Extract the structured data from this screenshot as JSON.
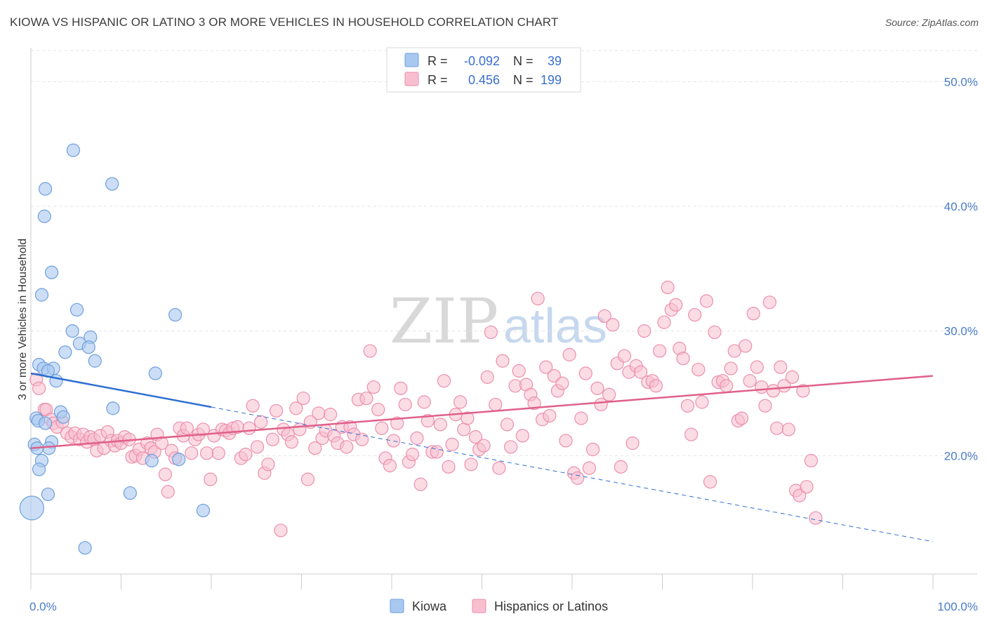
{
  "title": "KIOWA VS HISPANIC OR LATINO 3 OR MORE VEHICLES IN HOUSEHOLD CORRELATION CHART",
  "source": "Source: ZipAtlas.com",
  "watermark": {
    "zip": "ZIP",
    "atlas": "atlas"
  },
  "chart_data": {
    "type": "scatter",
    "xlabel": "",
    "ylabel": "3 or more Vehicles in Household",
    "xlim": [
      0,
      100
    ],
    "ylim": [
      10.5,
      52.5
    ],
    "x_tick_labels": [
      {
        "value": 0,
        "label": "0.0%"
      },
      {
        "value": 100,
        "label": "100.0%"
      }
    ],
    "y_ticks": [
      {
        "value": 20,
        "label": "20.0%"
      },
      {
        "value": 30,
        "label": "30.0%"
      },
      {
        "value": 40,
        "label": "40.0%"
      },
      {
        "value": 50,
        "label": "50.0%"
      }
    ],
    "grid": true,
    "legend_position": "top-center",
    "colors": {
      "kiowa_fill": "#a9c8f0",
      "kiowa_stroke": "#6f9fdc",
      "kiowa_line": "#2e6fd1",
      "hisp_fill": "#f7bfd0",
      "hisp_stroke": "#ec8fac",
      "hisp_line": "#e0608a",
      "axis_tick": "#4a7cc9"
    },
    "stats": [
      {
        "r_label": "R =",
        "r": "-0.092",
        "n_label": "N =",
        "n": "39"
      },
      {
        "r_label": "R =",
        "r": "0.456",
        "n_label": "N =",
        "n": "199"
      }
    ],
    "series": [
      {
        "name": "Kiowa",
        "trend": {
          "x0": 0,
          "y0": 26.6,
          "x1": 20,
          "y1": 23.9,
          "dash_x1": 100,
          "dash_y1": 13.1
        },
        "points": [
          [
            4.7,
            44.5
          ],
          [
            1.6,
            41.4
          ],
          [
            9.0,
            41.8
          ],
          [
            1.5,
            39.2
          ],
          [
            2.3,
            34.7
          ],
          [
            1.2,
            32.9
          ],
          [
            5.1,
            31.7
          ],
          [
            16.0,
            31.3
          ],
          [
            4.6,
            30.0
          ],
          [
            6.6,
            29.5
          ],
          [
            5.4,
            29.0
          ],
          [
            6.4,
            28.7
          ],
          [
            3.8,
            28.3
          ],
          [
            7.1,
            27.6
          ],
          [
            0.9,
            27.3
          ],
          [
            1.4,
            27.0
          ],
          [
            2.5,
            27.0
          ],
          [
            1.9,
            26.8
          ],
          [
            13.8,
            26.6
          ],
          [
            2.8,
            26.0
          ],
          [
            9.1,
            23.8
          ],
          [
            3.3,
            23.5
          ],
          [
            3.6,
            23.1
          ],
          [
            0.6,
            23.0
          ],
          [
            0.8,
            22.8
          ],
          [
            1.6,
            22.6
          ],
          [
            2.3,
            21.1
          ],
          [
            0.4,
            20.9
          ],
          [
            2.0,
            20.6
          ],
          [
            0.7,
            20.6
          ],
          [
            1.2,
            19.6
          ],
          [
            13.4,
            19.6
          ],
          [
            16.4,
            19.7
          ],
          [
            0.9,
            18.9
          ],
          [
            1.9,
            16.9
          ],
          [
            11.0,
            17.0
          ],
          [
            19.1,
            15.6
          ],
          [
            0.1,
            15.8
          ],
          [
            6.0,
            12.6
          ]
        ]
      },
      {
        "name": "Hispanics or Latinos",
        "trend": {
          "x0": 0,
          "y0": 20.6,
          "x1": 100,
          "y1": 26.4
        },
        "points": [
          [
            0.6,
            26.1
          ],
          [
            0.9,
            25.4
          ],
          [
            1.5,
            23.7
          ],
          [
            1.7,
            23.7
          ],
          [
            2.2,
            22.9
          ],
          [
            2.5,
            22.6
          ],
          [
            2.9,
            22.3
          ],
          [
            3.5,
            22.7
          ],
          [
            4.0,
            21.8
          ],
          [
            4.5,
            21.5
          ],
          [
            4.9,
            21.8
          ],
          [
            5.4,
            21.3
          ],
          [
            5.8,
            21.7
          ],
          [
            6.2,
            21.1
          ],
          [
            6.6,
            21.5
          ],
          [
            7.0,
            21.3
          ],
          [
            7.3,
            20.4
          ],
          [
            7.7,
            21.6
          ],
          [
            8.1,
            20.6
          ],
          [
            8.5,
            21.9
          ],
          [
            8.9,
            21.2
          ],
          [
            9.3,
            20.8
          ],
          [
            9.6,
            21.2
          ],
          [
            10.0,
            21.0
          ],
          [
            10.4,
            21.5
          ],
          [
            10.9,
            21.3
          ],
          [
            11.2,
            19.9
          ],
          [
            11.6,
            20.0
          ],
          [
            12.0,
            20.5
          ],
          [
            12.4,
            19.8
          ],
          [
            12.9,
            21.0
          ],
          [
            13.3,
            20.6
          ],
          [
            13.7,
            20.3
          ],
          [
            14.0,
            21.7
          ],
          [
            14.5,
            21.0
          ],
          [
            14.9,
            18.5
          ],
          [
            15.2,
            17.1
          ],
          [
            15.6,
            20.4
          ],
          [
            16.0,
            19.8
          ],
          [
            16.5,
            22.2
          ],
          [
            16.9,
            21.6
          ],
          [
            17.3,
            22.2
          ],
          [
            17.8,
            20.2
          ],
          [
            18.2,
            21.3
          ],
          [
            18.6,
            21.7
          ],
          [
            19.1,
            22.1
          ],
          [
            19.5,
            20.2
          ],
          [
            19.9,
            18.1
          ],
          [
            20.3,
            21.6
          ],
          [
            20.8,
            20.2
          ],
          [
            21.2,
            22.1
          ],
          [
            21.6,
            22.0
          ],
          [
            22.0,
            21.8
          ],
          [
            22.4,
            22.2
          ],
          [
            22.9,
            22.3
          ],
          [
            23.3,
            19.8
          ],
          [
            23.8,
            20.1
          ],
          [
            24.2,
            22.2
          ],
          [
            24.6,
            24.0
          ],
          [
            25.1,
            20.7
          ],
          [
            25.5,
            22.7
          ],
          [
            25.9,
            18.6
          ],
          [
            26.3,
            19.3
          ],
          [
            26.8,
            21.3
          ],
          [
            27.2,
            23.6
          ],
          [
            27.7,
            14.0
          ],
          [
            28.0,
            22.1
          ],
          [
            28.5,
            21.7
          ],
          [
            28.9,
            21.1
          ],
          [
            29.4,
            23.8
          ],
          [
            29.8,
            22.1
          ],
          [
            30.2,
            24.6
          ],
          [
            30.7,
            18.1
          ],
          [
            31.0,
            22.7
          ],
          [
            31.5,
            20.6
          ],
          [
            31.9,
            23.4
          ],
          [
            32.3,
            21.4
          ],
          [
            32.7,
            22.0
          ],
          [
            33.2,
            23.3
          ],
          [
            33.6,
            21.6
          ],
          [
            34.0,
            21.0
          ],
          [
            34.5,
            22.3
          ],
          [
            35.0,
            20.7
          ],
          [
            35.4,
            22.3
          ],
          [
            35.8,
            21.7
          ],
          [
            36.3,
            24.5
          ],
          [
            36.7,
            21.3
          ],
          [
            37.2,
            24.6
          ],
          [
            37.6,
            28.4
          ],
          [
            38.0,
            25.5
          ],
          [
            38.5,
            23.7
          ],
          [
            38.9,
            22.2
          ],
          [
            39.3,
            19.8
          ],
          [
            39.8,
            19.2
          ],
          [
            40.2,
            21.2
          ],
          [
            40.6,
            22.6
          ],
          [
            41.0,
            25.4
          ],
          [
            41.5,
            24.1
          ],
          [
            41.9,
            19.5
          ],
          [
            42.3,
            20.1
          ],
          [
            42.8,
            21.4
          ],
          [
            43.2,
            17.7
          ],
          [
            43.6,
            24.3
          ],
          [
            44.0,
            22.8
          ],
          [
            44.5,
            20.3
          ],
          [
            45.0,
            20.3
          ],
          [
            45.4,
            22.5
          ],
          [
            45.8,
            26.0
          ],
          [
            46.3,
            19.1
          ],
          [
            46.7,
            20.9
          ],
          [
            47.1,
            23.3
          ],
          [
            47.6,
            24.3
          ],
          [
            48.0,
            22.1
          ],
          [
            48.4,
            23.0
          ],
          [
            48.8,
            19.3
          ],
          [
            49.3,
            21.5
          ],
          [
            49.7,
            20.5
          ],
          [
            50.2,
            20.8
          ],
          [
            50.6,
            26.3
          ],
          [
            51.0,
            29.9
          ],
          [
            51.5,
            24.1
          ],
          [
            51.9,
            19.0
          ],
          [
            52.3,
            27.6
          ],
          [
            52.8,
            22.5
          ],
          [
            53.2,
            20.7
          ],
          [
            53.7,
            25.6
          ],
          [
            54.1,
            26.8
          ],
          [
            54.5,
            21.6
          ],
          [
            54.9,
            25.7
          ],
          [
            55.4,
            24.9
          ],
          [
            55.8,
            24.2
          ],
          [
            56.2,
            32.6
          ],
          [
            56.7,
            22.9
          ],
          [
            57.1,
            27.1
          ],
          [
            57.5,
            23.2
          ],
          [
            58.0,
            26.4
          ],
          [
            58.4,
            25.2
          ],
          [
            58.9,
            25.8
          ],
          [
            59.3,
            21.2
          ],
          [
            59.7,
            28.1
          ],
          [
            60.2,
            18.6
          ],
          [
            60.6,
            18.2
          ],
          [
            61.0,
            23.0
          ],
          [
            61.5,
            26.6
          ],
          [
            61.9,
            19.0
          ],
          [
            62.3,
            20.5
          ],
          [
            62.8,
            25.4
          ],
          [
            63.2,
            24.1
          ],
          [
            63.6,
            31.2
          ],
          [
            64.1,
            24.9
          ],
          [
            64.5,
            30.5
          ],
          [
            65.0,
            27.4
          ],
          [
            65.4,
            19.1
          ],
          [
            65.8,
            28.0
          ],
          [
            66.3,
            26.7
          ],
          [
            66.7,
            21.0
          ],
          [
            67.1,
            27.2
          ],
          [
            67.6,
            26.7
          ],
          [
            68.0,
            30.0
          ],
          [
            68.4,
            25.9
          ],
          [
            68.9,
            26.0
          ],
          [
            69.3,
            25.6
          ],
          [
            69.7,
            28.4
          ],
          [
            70.2,
            30.7
          ],
          [
            70.6,
            33.5
          ],
          [
            71.0,
            31.7
          ],
          [
            71.5,
            32.1
          ],
          [
            71.9,
            28.6
          ],
          [
            72.3,
            27.8
          ],
          [
            72.8,
            24.0
          ],
          [
            73.2,
            21.7
          ],
          [
            73.6,
            31.3
          ],
          [
            74.0,
            26.9
          ],
          [
            74.4,
            24.3
          ],
          [
            74.9,
            32.4
          ],
          [
            75.3,
            17.9
          ],
          [
            75.8,
            29.9
          ],
          [
            76.2,
            25.9
          ],
          [
            76.7,
            26.0
          ],
          [
            77.1,
            25.6
          ],
          [
            77.6,
            27.0
          ],
          [
            78.0,
            28.4
          ],
          [
            78.4,
            22.8
          ],
          [
            78.8,
            23.0
          ],
          [
            79.2,
            28.8
          ],
          [
            79.7,
            26.0
          ],
          [
            80.1,
            31.4
          ],
          [
            80.5,
            27.1
          ],
          [
            81.0,
            25.5
          ],
          [
            81.4,
            24.0
          ],
          [
            81.9,
            32.3
          ],
          [
            82.3,
            25.2
          ],
          [
            82.7,
            22.2
          ],
          [
            83.1,
            27.1
          ],
          [
            83.5,
            25.6
          ],
          [
            84.0,
            22.1
          ],
          [
            84.4,
            26.3
          ],
          [
            84.8,
            17.2
          ],
          [
            85.2,
            16.8
          ],
          [
            85.6,
            25.2
          ],
          [
            86.0,
            17.5
          ],
          [
            86.5,
            19.6
          ],
          [
            87.0,
            15.0
          ]
        ]
      }
    ]
  },
  "legend_bottom": [
    "Kiowa",
    "Hispanics or Latinos"
  ]
}
